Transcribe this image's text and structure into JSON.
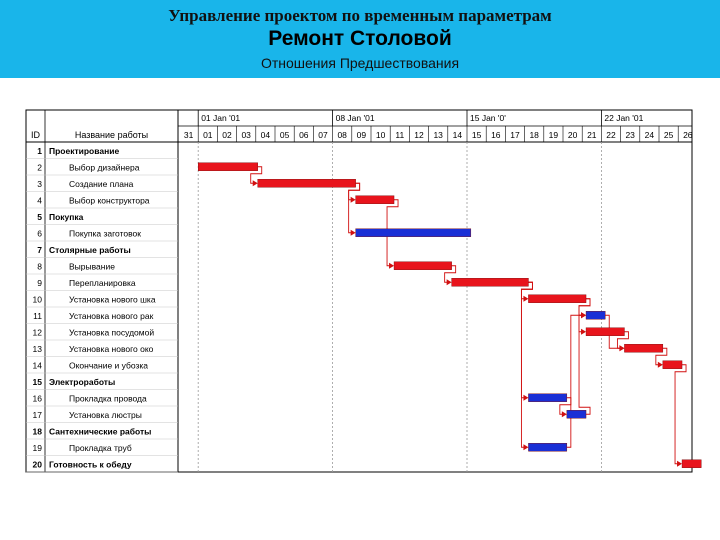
{
  "header": {
    "line1": "Управление проектом по временным параметрам",
    "line2": "Ремонт Столовой",
    "line3": "Отношения Предшествования"
  },
  "colors": {
    "header_bg": "#19b5ea",
    "critical": "#e8141c",
    "noncritical": "#1a2fd6",
    "link": "#d11010"
  },
  "table": {
    "id_header": "ID",
    "name_header": "Название работы",
    "rows": [
      {
        "id": "1",
        "name": "Проектирование",
        "bold": true
      },
      {
        "id": "2",
        "name": "Выбор дизайнера",
        "bold": false
      },
      {
        "id": "3",
        "name": "Создание плана",
        "bold": false
      },
      {
        "id": "4",
        "name": "Выбор конструктора",
        "bold": false
      },
      {
        "id": "5",
        "name": "Покупка",
        "bold": true
      },
      {
        "id": "6",
        "name": "Покупка заготовок",
        "bold": false
      },
      {
        "id": "7",
        "name": "Столярные работы",
        "bold": true
      },
      {
        "id": "8",
        "name": "Вырывание",
        "bold": false
      },
      {
        "id": "9",
        "name": "Перепланировка",
        "bold": false
      },
      {
        "id": "10",
        "name": "Установка нового шка",
        "bold": false
      },
      {
        "id": "11",
        "name": "Установка нового рак",
        "bold": false
      },
      {
        "id": "12",
        "name": "Установка посудомой",
        "bold": false
      },
      {
        "id": "13",
        "name": "Установка нового око",
        "bold": false
      },
      {
        "id": "14",
        "name": "Окончание и убозка",
        "bold": false
      },
      {
        "id": "15",
        "name": "Электроработы",
        "bold": true
      },
      {
        "id": "16",
        "name": "Прокладка провода",
        "bold": false
      },
      {
        "id": "17",
        "name": "Установка люстры",
        "bold": false
      },
      {
        "id": "18",
        "name": "Сантехнические работы",
        "bold": true
      },
      {
        "id": "19",
        "name": "Прокладка труб",
        "bold": false
      },
      {
        "id": "20",
        "name": "Готовность к обеду",
        "bold": true
      }
    ]
  },
  "timeline": {
    "weeks": [
      "01 Jan '01",
      "08 Jan '01",
      "15 Jan '0'",
      "22 Jan '01"
    ],
    "days": [
      "31",
      "01",
      "02",
      "03",
      "04",
      "05",
      "06",
      "07",
      "08",
      "09",
      "10",
      "11",
      "12",
      "13",
      "14",
      "15",
      "16",
      "17",
      "18",
      "19",
      "20",
      "21",
      "22",
      "23",
      "24",
      "25",
      "26"
    ]
  },
  "chart_data": {
    "type": "gantt",
    "unit": "day index (0 = 31 Dec)",
    "tasks": [
      {
        "row": 2,
        "start": 1.0,
        "end": 4.1,
        "critical": true
      },
      {
        "row": 3,
        "start": 4.1,
        "end": 9.2,
        "critical": true
      },
      {
        "row": 4,
        "start": 9.2,
        "end": 11.2,
        "critical": true
      },
      {
        "row": 6,
        "start": 9.2,
        "end": 15.2,
        "critical": false
      },
      {
        "row": 8,
        "start": 11.2,
        "end": 14.2,
        "critical": true
      },
      {
        "row": 9,
        "start": 14.2,
        "end": 18.2,
        "critical": true
      },
      {
        "row": 10,
        "start": 18.2,
        "end": 21.2,
        "critical": true
      },
      {
        "row": 11,
        "start": 21.2,
        "end": 22.2,
        "critical": false
      },
      {
        "row": 12,
        "start": 21.2,
        "end": 23.2,
        "critical": true
      },
      {
        "row": 13,
        "start": 23.2,
        "end": 25.2,
        "critical": true
      },
      {
        "row": 14,
        "start": 25.2,
        "end": 26.2,
        "critical": true
      },
      {
        "row": 16,
        "start": 18.2,
        "end": 20.2,
        "critical": false
      },
      {
        "row": 17,
        "start": 20.2,
        "end": 21.2,
        "critical": false
      },
      {
        "row": 19,
        "start": 18.2,
        "end": 20.2,
        "critical": false
      },
      {
        "row": 20,
        "start": 26.2,
        "end": 27.2,
        "critical": true
      }
    ],
    "links": [
      [
        2,
        3
      ],
      [
        3,
        4
      ],
      [
        3,
        6
      ],
      [
        4,
        8
      ],
      [
        8,
        9
      ],
      [
        9,
        10
      ],
      [
        9,
        16
      ],
      [
        9,
        19
      ],
      [
        10,
        11
      ],
      [
        10,
        12
      ],
      [
        11,
        13
      ],
      [
        12,
        13
      ],
      [
        13,
        14
      ],
      [
        14,
        20
      ],
      [
        16,
        17
      ],
      [
        17,
        11
      ],
      [
        19,
        11
      ]
    ]
  }
}
